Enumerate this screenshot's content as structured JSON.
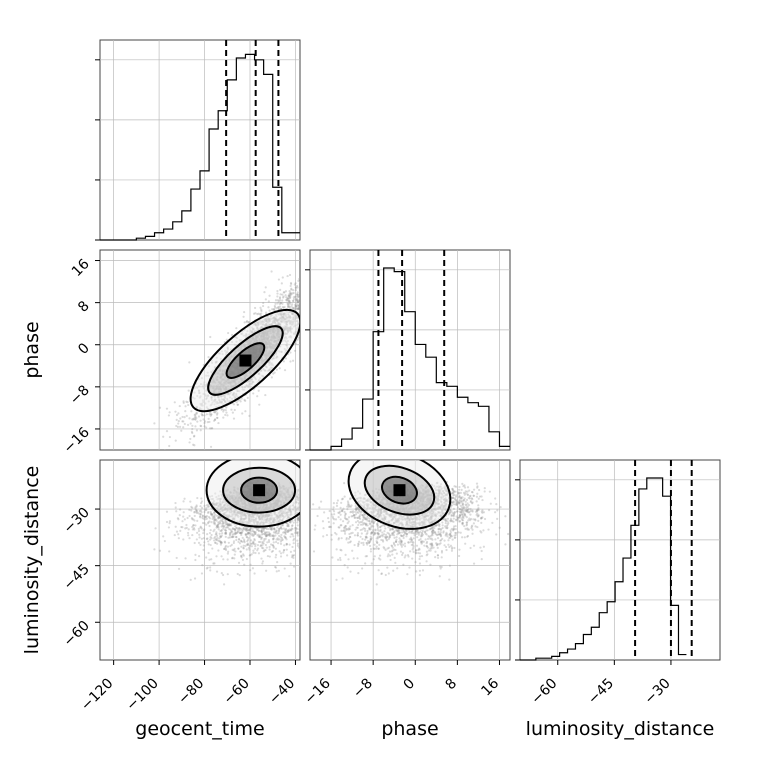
{
  "chart_data": {
    "type": "corner",
    "parameters": [
      {
        "name": "geocent_time",
        "label": "geocent_time",
        "range": [
          -126,
          -38
        ],
        "ticks": [
          -120,
          -100,
          -80,
          -60,
          -40
        ],
        "quantiles": [
          -70.5,
          -57.5,
          -47.5
        ]
      },
      {
        "name": "phase",
        "label": "phase",
        "range": [
          -20,
          18
        ],
        "ticks": [
          -16,
          -8,
          0,
          8,
          16
        ],
        "quantiles": [
          -7,
          -2.5,
          5.5
        ]
      },
      {
        "name": "luminosity_distance",
        "label": "luminosity_distance",
        "range": [
          -70,
          -17
        ],
        "ticks": [
          -60,
          -45,
          -30
        ],
        "quantiles": [
          -39.5,
          -30,
          -24.5
        ]
      }
    ],
    "histograms": {
      "geocent_time": {
        "bin_start": -126,
        "bin_width": 4,
        "counts": [
          0,
          0,
          0,
          0,
          0.01,
          0.02,
          0.04,
          0.06,
          0.1,
          0.16,
          0.28,
          0.38,
          0.61,
          0.71,
          0.88,
          1.0,
          1.02,
          0.99,
          0.91,
          0.29,
          0.04,
          0.04
        ]
      },
      "phase": {
        "bin_start": -20,
        "bin_width": 2,
        "counts": [
          0,
          0,
          0.02,
          0.06,
          0.12,
          0.28,
          0.65,
          1.0,
          0.98,
          0.76,
          0.58,
          0.51,
          0.37,
          0.35,
          0.29,
          0.26,
          0.24,
          0.1,
          0.02
        ]
      },
      "luminosity_distance": {
        "bin_start": -70,
        "bin_width": 2.1,
        "counts": [
          0,
          0,
          0.01,
          0.01,
          0.02,
          0.04,
          0.06,
          0.09,
          0.14,
          0.18,
          0.26,
          0.32,
          0.43,
          0.56,
          0.74,
          0.94,
          1.0,
          1.0,
          0.9,
          0.3,
          0.03
        ]
      }
    },
    "pairs": [
      {
        "x": "geocent_time",
        "y": "phase",
        "mode": [
          -62,
          -3
        ]
      },
      {
        "x": "geocent_time",
        "y": "luminosity_distance",
        "mode": [
          -56,
          -25
        ]
      },
      {
        "x": "phase",
        "y": "luminosity_distance",
        "mode": [
          -3,
          -25
        ]
      }
    ],
    "grid": true,
    "contour_levels": 3
  }
}
